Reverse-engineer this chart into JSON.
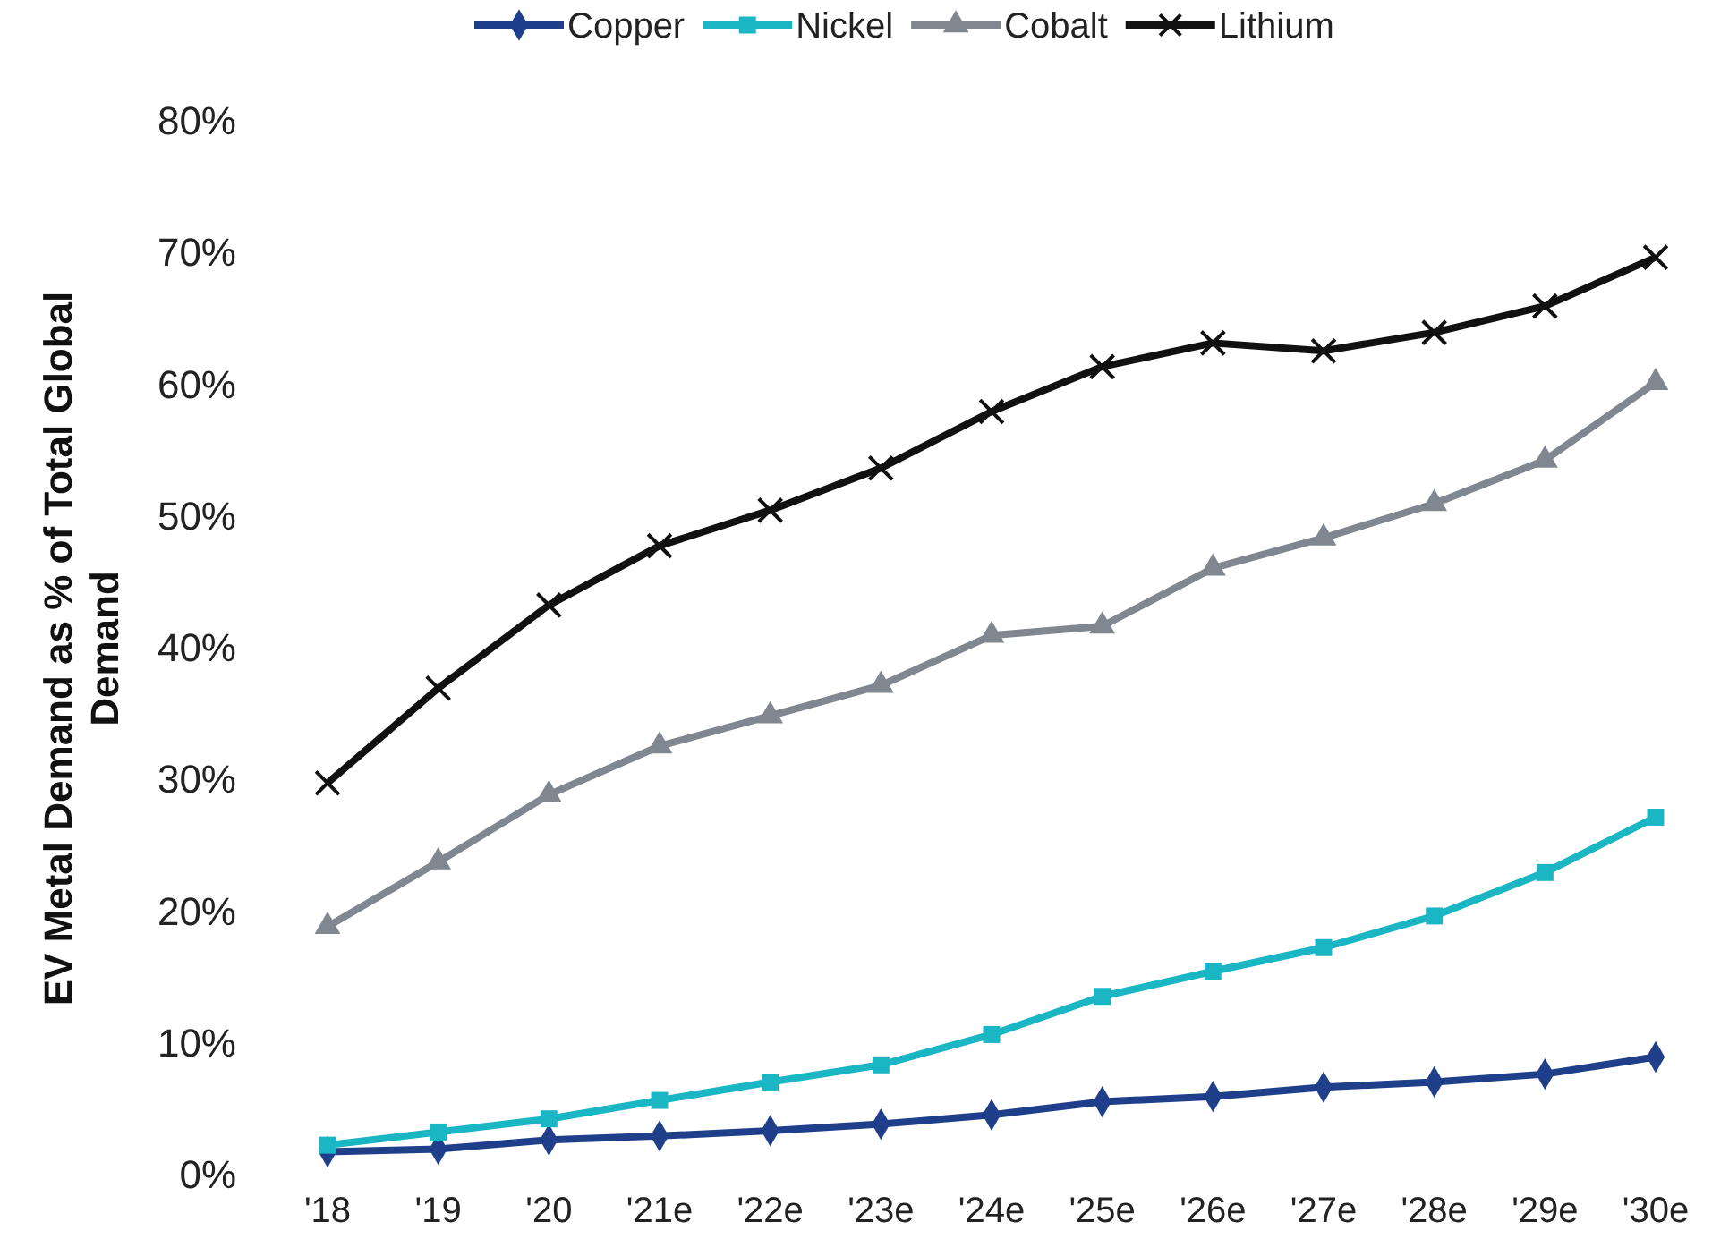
{
  "chart_data": {
    "type": "line",
    "ylabel": "EV Metal Demand as % of Total Global Demand",
    "categories": [
      "'18",
      "'19",
      "'20",
      "'21e",
      "'22e",
      "'23e",
      "'24e",
      "'25e",
      "'26e",
      "'27e",
      "'28e",
      "'29e",
      "'30e"
    ],
    "series": [
      {
        "name": "Copper",
        "color": "#1f3f8a",
        "marker": "diamond",
        "values": [
          1.8,
          2.0,
          2.7,
          3.0,
          3.4,
          3.9,
          4.6,
          5.6,
          6.0,
          6.7,
          7.1,
          7.7,
          9.0
        ]
      },
      {
        "name": "Nickel",
        "color": "#1ab6c4",
        "marker": "square",
        "values": [
          2.3,
          3.3,
          4.3,
          5.7,
          7.1,
          8.4,
          10.7,
          13.6,
          15.5,
          17.3,
          19.7,
          23.0,
          27.2
        ]
      },
      {
        "name": "Cobalt",
        "color": "#808790",
        "marker": "triangle",
        "values": [
          18.9,
          23.8,
          28.9,
          32.6,
          34.9,
          37.2,
          41.0,
          41.7,
          46.1,
          48.4,
          51.0,
          54.3,
          60.2
        ]
      },
      {
        "name": "Lithium",
        "color": "#111111",
        "marker": "cross",
        "values": [
          29.8,
          37.0,
          43.3,
          47.8,
          50.5,
          53.7,
          58.0,
          61.4,
          63.2,
          62.6,
          64.0,
          66.0,
          69.7
        ]
      }
    ],
    "ylim": [
      0,
      80
    ],
    "yticks": [
      {
        "value": 0,
        "label": "0%"
      },
      {
        "value": 10,
        "label": "10%"
      },
      {
        "value": 20,
        "label": "20%"
      },
      {
        "value": 30,
        "label": "30%"
      },
      {
        "value": 40,
        "label": "40%"
      },
      {
        "value": 50,
        "label": "50%"
      },
      {
        "value": 60,
        "label": "60%"
      },
      {
        "value": 70,
        "label": "70%"
      },
      {
        "value": 80,
        "label": "80%"
      }
    ],
    "grid": false,
    "legend": "top",
    "line_style": "solid"
  }
}
